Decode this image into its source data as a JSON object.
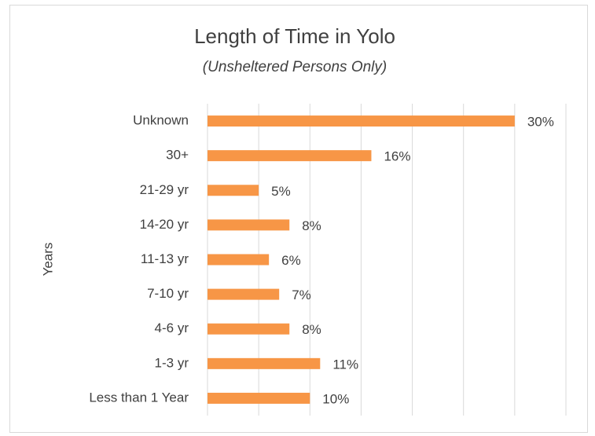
{
  "chart_data": {
    "type": "bar",
    "orientation": "horizontal",
    "title": "Length of Time in Yolo",
    "subtitle": "(Unsheltered Persons Only)",
    "y_label": "Years",
    "categories": [
      "Unknown",
      "30+",
      "21-29 yr",
      "14-20 yr",
      "11-13 yr",
      "7-10 yr",
      "4-6 yr",
      "1-3 yr",
      "Less than 1 Year"
    ],
    "values": [
      30,
      16,
      5,
      8,
      6,
      7,
      8,
      11,
      10
    ],
    "value_labels": [
      "30%",
      "16%",
      "5%",
      "8%",
      "6%",
      "7%",
      "8%",
      "11%",
      "10%"
    ],
    "color": "#f79646",
    "xlim": [
      0,
      35
    ],
    "xticks": [
      0,
      5,
      10,
      15,
      20,
      25,
      30,
      35
    ],
    "grid": true
  }
}
